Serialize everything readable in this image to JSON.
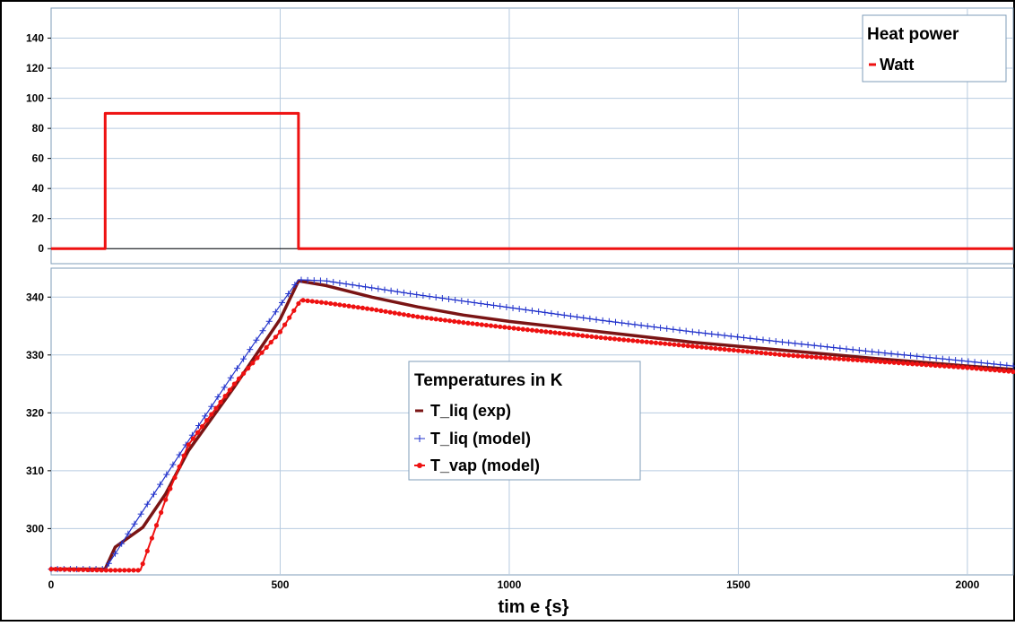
{
  "colors": {
    "heat_power": "#ee1111",
    "t_liq_exp": "#7a1414",
    "t_liq_model": "#2233cc",
    "t_vap_model": "#ee1111",
    "grid": "#b7cbe0",
    "frame": "#7f9db9"
  },
  "chart_data": [
    {
      "type": "line",
      "title": "",
      "xlabel": "",
      "ylabel": "",
      "xlim": [
        0,
        2100
      ],
      "ylim": [
        -10,
        160
      ],
      "yticks": [
        0,
        20,
        40,
        60,
        80,
        100,
        120,
        140
      ],
      "grid": true,
      "legend": {
        "title": "Heat power",
        "placement": "top-right",
        "entries": [
          "Watt"
        ]
      },
      "series": [
        {
          "name": "Watt",
          "color": "#ee1111",
          "x": [
            0,
            118,
            118,
            540,
            540,
            2100
          ],
          "y": [
            0,
            0,
            90,
            90,
            0,
            0
          ]
        }
      ]
    },
    {
      "type": "line",
      "title": "",
      "xlabel": "tim e {s}",
      "ylabel": "",
      "xlim": [
        0,
        2100
      ],
      "ylim": [
        292,
        345
      ],
      "xticks": [
        0,
        500,
        1000,
        1500,
        2000
      ],
      "yticks": [
        300,
        310,
        320,
        330,
        340
      ],
      "grid": true,
      "legend": {
        "title": "Temperatures in K",
        "placement": "center",
        "entries": [
          "T_liq  (exp)",
          "T_liq (model)",
          "T_vap (model)"
        ]
      },
      "series": [
        {
          "name": "T_liq  (exp)",
          "color": "#7a1414",
          "marker": "none",
          "x": [
            0,
            118,
            140,
            200,
            250,
            300,
            400,
            500,
            540,
            600,
            700,
            800,
            900,
            1000,
            1200,
            1400,
            1600,
            1800,
            2000,
            2100
          ],
          "y": [
            293.0,
            293.0,
            296.8,
            300.2,
            306.0,
            313.5,
            324.5,
            336.2,
            342.8,
            342.0,
            340.0,
            338.3,
            336.9,
            335.8,
            334.0,
            332.2,
            330.8,
            329.4,
            328.1,
            327.5
          ]
        },
        {
          "name": "T_liq (model)",
          "color": "#2233cc",
          "marker": "+",
          "x": [
            0,
            118,
            200,
            300,
            400,
            500,
            540,
            600,
            700,
            800,
            900,
            1000,
            1200,
            1400,
            1600,
            1800,
            2000,
            2100
          ],
          "y": [
            293.0,
            293.0,
            303.0,
            315.2,
            327.0,
            338.6,
            343.0,
            342.8,
            341.6,
            340.4,
            339.3,
            338.2,
            336.0,
            334.0,
            332.2,
            330.5,
            328.9,
            328.1
          ]
        },
        {
          "name": "T_vap (model)",
          "color": "#ee1111",
          "marker": "dot",
          "x": [
            0,
            118,
            195,
            250,
            300,
            400,
            500,
            545,
            600,
            700,
            800,
            900,
            1000,
            1200,
            1400,
            1600,
            1800,
            2000,
            2100
          ],
          "y": [
            293.0,
            292.8,
            292.8,
            305.0,
            314.5,
            325.0,
            334.0,
            339.5,
            339.0,
            337.9,
            336.6,
            335.6,
            334.7,
            333.0,
            331.5,
            330.0,
            328.9,
            327.8,
            327.1
          ]
        }
      ]
    }
  ]
}
